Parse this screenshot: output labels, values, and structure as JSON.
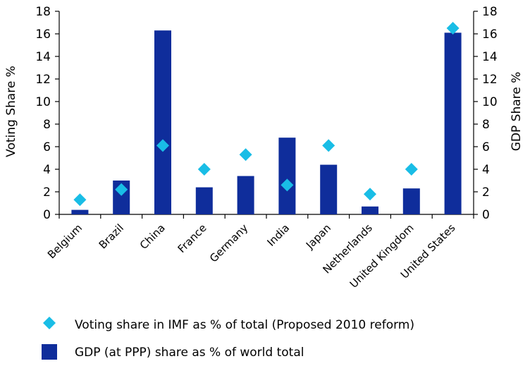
{
  "chart_data": {
    "type": "bar",
    "categories": [
      "Belgium",
      "Brazil",
      "China",
      "France",
      "Germany",
      "India",
      "Japan",
      "Netherlands",
      "United Kingdom",
      "United States"
    ],
    "series": [
      {
        "name": "GDP (at PPP) share as % of world total",
        "kind": "bar",
        "axis": "right",
        "color": "#0f2d9b",
        "values": [
          0.4,
          3.0,
          16.3,
          2.4,
          3.4,
          6.8,
          4.4,
          0.7,
          2.3,
          16.1
        ]
      },
      {
        "name": "Voting share in IMF as % of total (Proposed 2010 reform)",
        "kind": "diamond",
        "axis": "left",
        "color": "#19bde6",
        "values": [
          1.3,
          2.2,
          6.1,
          4.0,
          5.3,
          2.6,
          6.1,
          1.8,
          4.0,
          16.5
        ]
      }
    ],
    "ylabel": "Voting Share %",
    "ylabel_right": "GDP Share %",
    "ylim": [
      0,
      18
    ],
    "ylim_right": [
      0,
      18
    ],
    "yticks": [
      "0",
      "2",
      "4",
      "6",
      "8",
      "10",
      "12",
      "14",
      "16",
      "18"
    ],
    "grid": false,
    "legend_position": "bottom"
  }
}
